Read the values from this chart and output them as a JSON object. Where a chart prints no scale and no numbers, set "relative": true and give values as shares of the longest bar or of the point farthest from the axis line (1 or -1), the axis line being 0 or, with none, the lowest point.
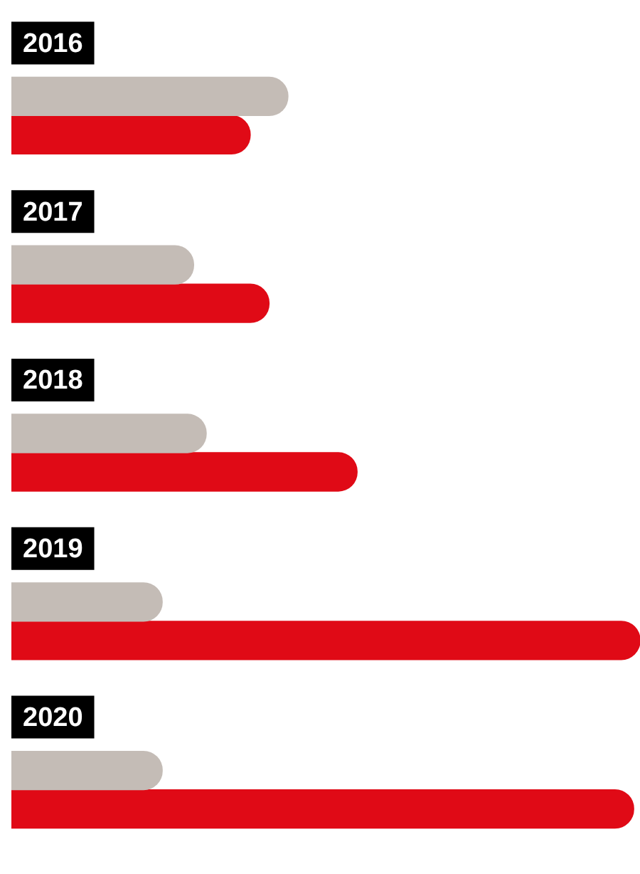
{
  "chart_data": {
    "type": "bar",
    "orientation": "horizontal",
    "relative": true,
    "tick_labels": "y",
    "categories": [
      "2016",
      "2017",
      "2018",
      "2019",
      "2020"
    ],
    "series": [
      {
        "color": "#c4bcb6",
        "values": [
          0.44,
          0.29,
          0.31,
          0.24,
          0.24
        ]
      },
      {
        "color": "#e00a16",
        "values": [
          0.38,
          0.41,
          0.55,
          1,
          0.99
        ]
      }
    ]
  }
}
